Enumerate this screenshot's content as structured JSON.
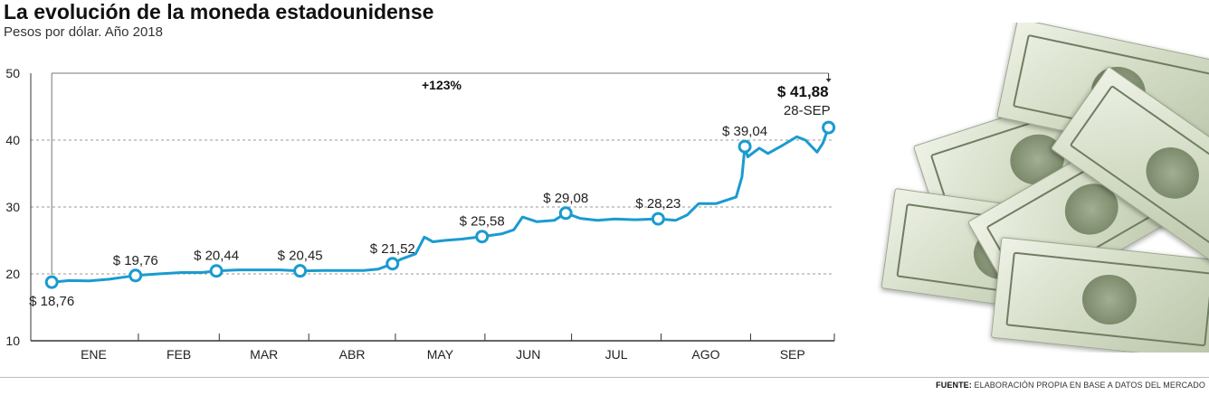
{
  "title": "La evolución de la moneda estadounidense",
  "subtitle": "Pesos por dólar. Año 2018",
  "footer": {
    "label": "FUENTE:",
    "text": "ELABORACIÓN PROPIA EN BASE A DATOS DEL MERCADO"
  },
  "colors": {
    "line": "#1a9bd0",
    "grid": "#9a9a9a",
    "axis": "#333333",
    "text": "#222222"
  },
  "decoration": {
    "image": "pile-of-us-dollar-bills"
  },
  "chart_data": {
    "type": "line",
    "title": "La evolución de la moneda estadounidense",
    "subtitle": "Pesos por dólar. Año 2018",
    "ylim": [
      10,
      50
    ],
    "yticks": [
      10,
      20,
      30,
      40,
      50
    ],
    "grid": true,
    "xlim": [
      "2018-01-01",
      "2018-09-30"
    ],
    "month_labels": [
      "ENE",
      "FEB",
      "MAR",
      "ABR",
      "MAY",
      "JUN",
      "JUL",
      "AGO",
      "SEP"
    ],
    "change_annotation": "+123%",
    "series": [
      {
        "values": [
          {
            "x": "2018-01-02",
            "y": 18.76
          },
          {
            "x": "2018-01-08",
            "y": 19.0
          },
          {
            "x": "2018-01-15",
            "y": 18.95
          },
          {
            "x": "2018-01-22",
            "y": 19.2
          },
          {
            "x": "2018-01-31",
            "y": 19.76
          },
          {
            "x": "2018-02-08",
            "y": 20.0
          },
          {
            "x": "2018-02-16",
            "y": 20.2
          },
          {
            "x": "2018-02-23",
            "y": 20.2
          },
          {
            "x": "2018-02-28",
            "y": 20.44
          },
          {
            "x": "2018-03-08",
            "y": 20.6
          },
          {
            "x": "2018-03-15",
            "y": 20.6
          },
          {
            "x": "2018-03-22",
            "y": 20.6
          },
          {
            "x": "2018-03-29",
            "y": 20.45
          },
          {
            "x": "2018-04-06",
            "y": 20.5
          },
          {
            "x": "2018-04-13",
            "y": 20.5
          },
          {
            "x": "2018-04-20",
            "y": 20.5
          },
          {
            "x": "2018-04-25",
            "y": 20.7
          },
          {
            "x": "2018-04-30",
            "y": 21.52
          },
          {
            "x": "2018-05-03",
            "y": 22.2
          },
          {
            "x": "2018-05-08",
            "y": 23.0
          },
          {
            "x": "2018-05-11",
            "y": 25.5
          },
          {
            "x": "2018-05-14",
            "y": 24.8
          },
          {
            "x": "2018-05-18",
            "y": 25.0
          },
          {
            "x": "2018-05-24",
            "y": 25.2
          },
          {
            "x": "2018-05-31",
            "y": 25.58
          },
          {
            "x": "2018-06-07",
            "y": 26.0
          },
          {
            "x": "2018-06-11",
            "y": 26.6
          },
          {
            "x": "2018-06-14",
            "y": 28.5
          },
          {
            "x": "2018-06-19",
            "y": 27.8
          },
          {
            "x": "2018-06-25",
            "y": 28.0
          },
          {
            "x": "2018-06-29",
            "y": 29.08
          },
          {
            "x": "2018-07-04",
            "y": 28.3
          },
          {
            "x": "2018-07-10",
            "y": 28.0
          },
          {
            "x": "2018-07-16",
            "y": 28.2
          },
          {
            "x": "2018-07-23",
            "y": 28.1
          },
          {
            "x": "2018-07-31",
            "y": 28.23
          },
          {
            "x": "2018-08-06",
            "y": 28.0
          },
          {
            "x": "2018-08-10",
            "y": 28.8
          },
          {
            "x": "2018-08-14",
            "y": 30.5
          },
          {
            "x": "2018-08-20",
            "y": 30.5
          },
          {
            "x": "2018-08-27",
            "y": 31.5
          },
          {
            "x": "2018-08-29",
            "y": 34.5
          },
          {
            "x": "2018-08-30",
            "y": 39.04
          },
          {
            "x": "2018-08-31",
            "y": 37.5
          },
          {
            "x": "2018-09-04",
            "y": 38.8
          },
          {
            "x": "2018-09-07",
            "y": 38.0
          },
          {
            "x": "2018-09-12",
            "y": 39.2
          },
          {
            "x": "2018-09-17",
            "y": 40.5
          },
          {
            "x": "2018-09-20",
            "y": 40.0
          },
          {
            "x": "2018-09-24",
            "y": 38.2
          },
          {
            "x": "2018-09-26",
            "y": 39.5
          },
          {
            "x": "2018-09-28",
            "y": 41.88
          }
        ]
      }
    ],
    "labeled_points": [
      {
        "x": "2018-01-02",
        "y": 18.76,
        "label": "$ 18,76",
        "pos": "below"
      },
      {
        "x": "2018-01-31",
        "y": 19.76,
        "label": "$ 19,76",
        "pos": "above"
      },
      {
        "x": "2018-02-28",
        "y": 20.44,
        "label": "$ 20,44",
        "pos": "above"
      },
      {
        "x": "2018-03-29",
        "y": 20.45,
        "label": "$ 20,45",
        "pos": "above"
      },
      {
        "x": "2018-04-30",
        "y": 21.52,
        "label": "$ 21,52",
        "pos": "above"
      },
      {
        "x": "2018-05-31",
        "y": 25.58,
        "label": "$ 25,58",
        "pos": "above"
      },
      {
        "x": "2018-06-29",
        "y": 29.08,
        "label": "$ 29,08",
        "pos": "above"
      },
      {
        "x": "2018-07-31",
        "y": 28.23,
        "label": "$ 28,23",
        "pos": "above"
      },
      {
        "x": "2018-08-30",
        "y": 39.04,
        "label": "$ 39,04",
        "pos": "above"
      }
    ],
    "final_point": {
      "x": "2018-09-28",
      "y": 41.88,
      "value_label": "$ 41,88",
      "date_label": "28-SEP"
    }
  }
}
